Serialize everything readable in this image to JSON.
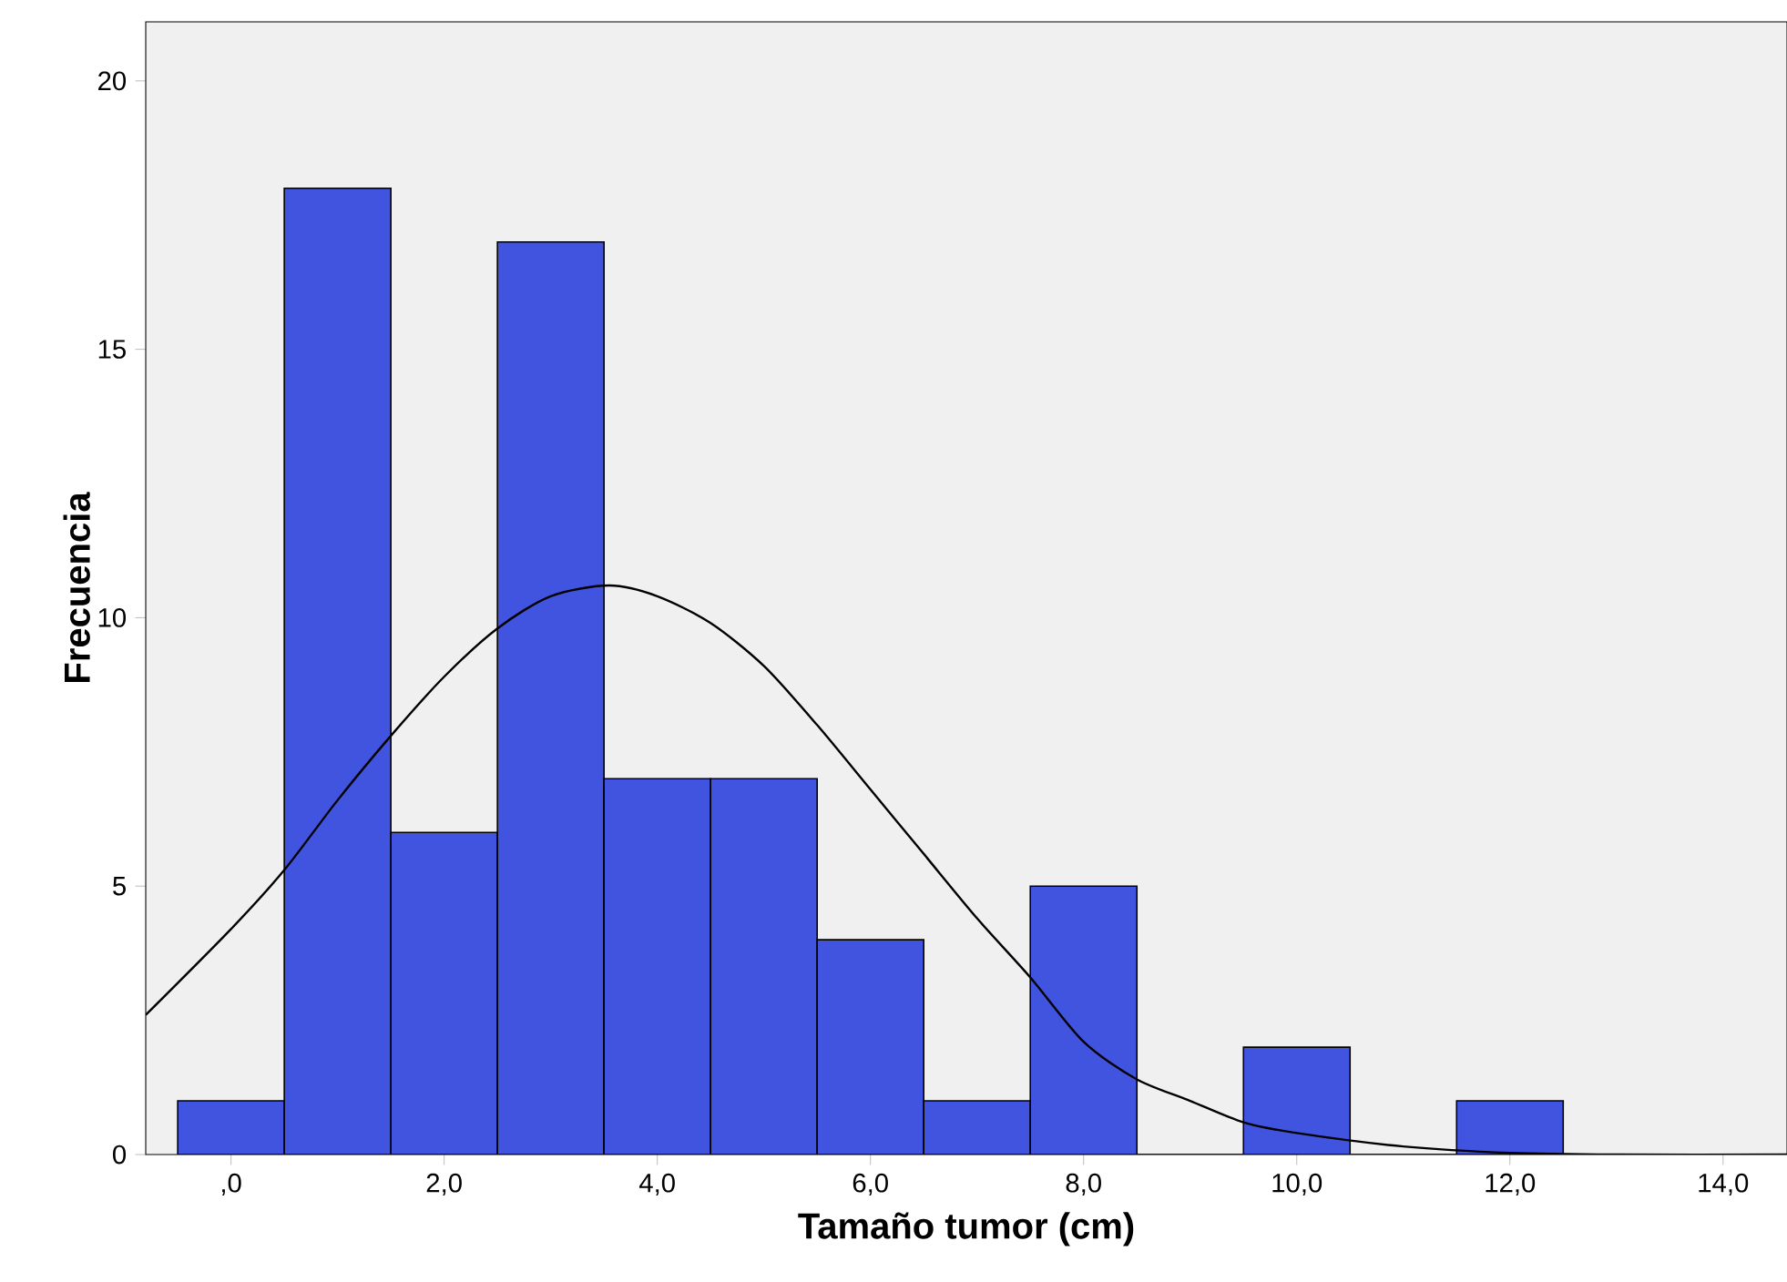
{
  "chart_data": {
    "type": "histogram",
    "xlabel": "Tamaño tumor (cm)",
    "ylabel": "Frecuencia",
    "bins": [
      -0.5,
      0.5,
      1.5,
      2.5,
      3.5,
      4.5,
      5.5,
      6.5,
      7.5,
      8.5,
      9.5,
      10.5,
      11.5,
      12.5
    ],
    "values": [
      1,
      18,
      6,
      17,
      7,
      7,
      4,
      1,
      5,
      0,
      2,
      0,
      1
    ],
    "color": "#4154e0",
    "series": [
      {
        "type": "line",
        "color": "#000000",
        "x": [
          -0.8,
          0,
          0.5,
          1,
          1.5,
          2,
          2.5,
          3,
          3.55,
          4,
          4.5,
          5,
          5.5,
          6,
          6.5,
          7,
          7.5,
          8,
          8.5,
          9,
          9.5,
          10,
          11,
          12,
          13,
          14.6
        ],
        "values": [
          2.6,
          4.2,
          5.3,
          6.6,
          7.8,
          8.9,
          9.8,
          10.4,
          10.6,
          10.4,
          9.9,
          9.1,
          8.0,
          6.8,
          5.6,
          4.4,
          3.3,
          2.1,
          1.4,
          1.0,
          0.6,
          0.4,
          0.15,
          0.03,
          0,
          0
        ]
      }
    ],
    "xlim": [
      -0.8,
      14.6
    ],
    "ylim": [
      0,
      21.1
    ],
    "xticks": [
      {
        "value": 0,
        "label": ",0"
      },
      {
        "value": 2,
        "label": "2,0"
      },
      {
        "value": 4,
        "label": "4,0"
      },
      {
        "value": 6,
        "label": "6,0"
      },
      {
        "value": 8,
        "label": "8,0"
      },
      {
        "value": 10,
        "label": "10,0"
      },
      {
        "value": 12,
        "label": "12,0"
      },
      {
        "value": 14,
        "label": "14,0"
      }
    ],
    "yticks": [
      0,
      5,
      10,
      15,
      20
    ],
    "grid": false
  }
}
